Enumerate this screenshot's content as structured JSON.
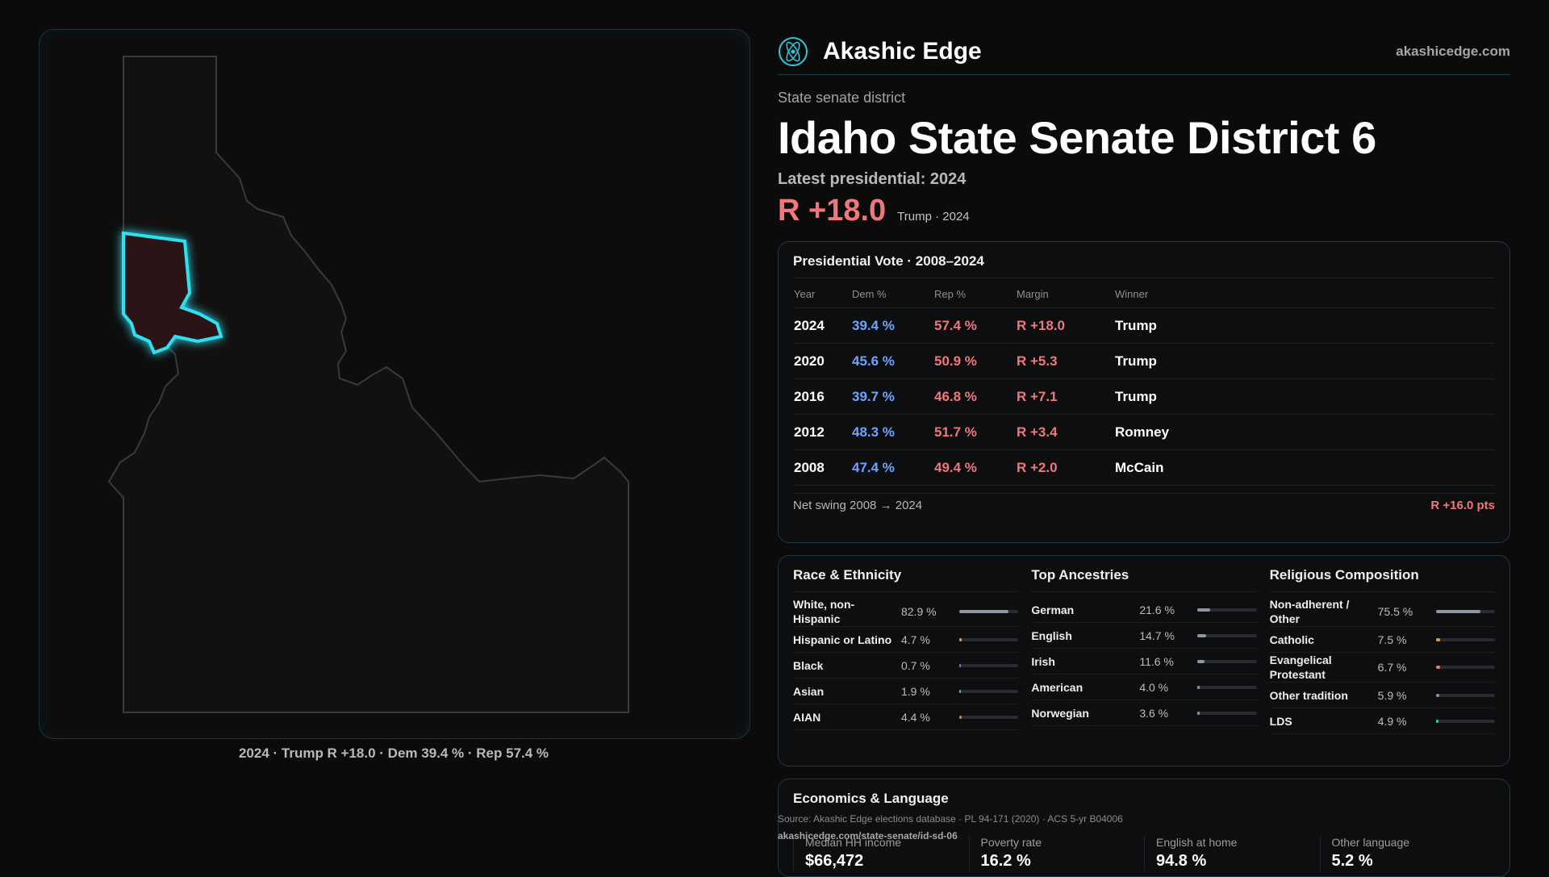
{
  "brand": {
    "name": "Akashic Edge",
    "url": "akashicedge.com",
    "logo_icon": "atom-logo-icon",
    "accent": "#2ec9e0"
  },
  "header": {
    "type_label": "State senate district",
    "title": "Idaho State Senate District 6",
    "latest": "Latest presidential: 2024",
    "margin": "R +18.0",
    "margin_sub": "Trump · 2024"
  },
  "map": {
    "caption": "2024 · Trump R +18.0 · Dem 39.4 % · Rep 57.4 %",
    "highlight_color": "#2ee0f0"
  },
  "presidential": {
    "title": "Presidential Vote · 2008–2024",
    "headers": [
      "Year",
      "Dem %",
      "Rep %",
      "Margin",
      "Winner"
    ],
    "rows": [
      {
        "year": "2024",
        "dem": "39.4 %",
        "rep": "57.4 %",
        "margin": "R +18.0",
        "winner": "Trump"
      },
      {
        "year": "2020",
        "dem": "45.6 %",
        "rep": "50.9 %",
        "margin": "R +5.3",
        "winner": "Trump"
      },
      {
        "year": "2016",
        "dem": "39.7 %",
        "rep": "46.8 %",
        "margin": "R +7.1",
        "winner": "Trump"
      },
      {
        "year": "2012",
        "dem": "48.3 %",
        "rep": "51.7 %",
        "margin": "R +3.4",
        "winner": "Romney"
      },
      {
        "year": "2008",
        "dem": "47.4 %",
        "rep": "49.4 %",
        "margin": "R +2.0",
        "winner": "McCain"
      }
    ],
    "swing_label": "Net swing 2008 → 2024",
    "swing_value": "R +16.0 pts",
    "colors": {
      "dem": "#6fa3ff",
      "rep": "#f0777a"
    }
  },
  "demographics": [
    {
      "title": "Race & Ethnicity",
      "rows": [
        {
          "name": "White, non-Hispanic",
          "value": "82.9 %",
          "pct": 82.9,
          "color": "#8e97a6"
        },
        {
          "name": "Hispanic or Latino",
          "value": "4.7 %",
          "pct": 4.7,
          "color": "#e0a03a"
        },
        {
          "name": "Black",
          "value": "0.7 %",
          "pct": 0.7,
          "color": "#6a7cd6"
        },
        {
          "name": "Asian",
          "value": "1.9 %",
          "pct": 1.9,
          "color": "#3ec9a8"
        },
        {
          "name": "AIAN",
          "value": "4.4 %",
          "pct": 4.4,
          "color": "#e07a3a"
        }
      ]
    },
    {
      "title": "Top Ancestries",
      "rows": [
        {
          "name": "German",
          "value": "21.6 %",
          "pct": 21.6,
          "color": "#8e97a6"
        },
        {
          "name": "English",
          "value": "14.7 %",
          "pct": 14.7,
          "color": "#8e97a6"
        },
        {
          "name": "Irish",
          "value": "11.6 %",
          "pct": 11.6,
          "color": "#8e97a6"
        },
        {
          "name": "American",
          "value": "4.0 %",
          "pct": 4.0,
          "color": "#8e97a6"
        },
        {
          "name": "Norwegian",
          "value": "3.6 %",
          "pct": 3.6,
          "color": "#8e97a6"
        }
      ]
    },
    {
      "title": "Religious Composition",
      "rows": [
        {
          "name": "Non-adherent / Other",
          "value": "75.5 %",
          "pct": 75.5,
          "color": "#8e97a6"
        },
        {
          "name": "Catholic",
          "value": "7.5 %",
          "pct": 7.5,
          "color": "#e0a03a"
        },
        {
          "name": "Evangelical Protestant",
          "value": "6.7 %",
          "pct": 6.7,
          "color": "#f0777a"
        },
        {
          "name": "Other tradition",
          "value": "5.9 %",
          "pct": 5.9,
          "color": "#8e97a6"
        },
        {
          "name": "LDS",
          "value": "4.9 %",
          "pct": 4.9,
          "color": "#3ec9a8"
        }
      ]
    }
  ],
  "economics": {
    "title": "Economics & Language",
    "items": [
      {
        "label": "Median HH income",
        "value": "$66,472"
      },
      {
        "label": "Poverty rate",
        "value": "16.2 %"
      },
      {
        "label": "English at home",
        "value": "94.8 %"
      },
      {
        "label": "Other language",
        "value": "5.2 %"
      }
    ]
  },
  "source": {
    "text": "Source: Akashic Edge elections database · PL 94-171 (2020) · ACS 5-yr B04006",
    "url": "akashicedge.com/state-senate/id-sd-06"
  }
}
